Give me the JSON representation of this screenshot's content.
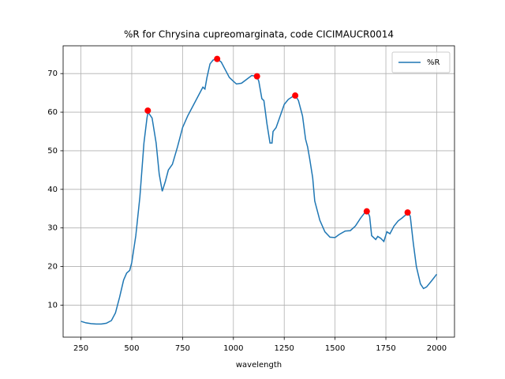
{
  "chart_data": {
    "type": "line",
    "title": "%R for Chrysina cupreomarginata, code CICIMAUCR0014",
    "xlabel": "wavelength",
    "x": [
      250,
      275,
      300,
      325,
      350,
      375,
      400,
      420,
      440,
      460,
      475,
      490,
      500,
      520,
      540,
      560,
      575,
      580,
      600,
      620,
      635,
      650,
      665,
      680,
      700,
      725,
      750,
      775,
      800,
      825,
      850,
      860,
      870,
      885,
      900,
      920,
      940,
      960,
      980,
      1000,
      1015,
      1040,
      1060,
      1090,
      1115,
      1125,
      1140,
      1150,
      1165,
      1180,
      1190,
      1195,
      1210,
      1230,
      1250,
      1270,
      1290,
      1305,
      1320,
      1340,
      1355,
      1365,
      1375,
      1390,
      1400,
      1425,
      1450,
      1475,
      1500,
      1520,
      1550,
      1575,
      1600,
      1625,
      1650,
      1660,
      1670,
      1680,
      1700,
      1710,
      1725,
      1740,
      1755,
      1770,
      1790,
      1810,
      1830,
      1850,
      1860,
      1870,
      1885,
      1900,
      1920,
      1935,
      1950,
      1975,
      2000
    ],
    "series": [
      {
        "name": "%R",
        "color": "#1f77b4",
        "values": [
          5.8,
          5.4,
          5.2,
          5.1,
          5.1,
          5.3,
          6.0,
          8,
          12,
          16.5,
          18.3,
          19,
          21,
          28,
          38,
          52,
          58.5,
          60,
          58.5,
          52,
          44,
          39.5,
          42,
          45,
          46.5,
          51,
          56,
          59,
          61.5,
          64,
          66.5,
          66,
          69,
          72.5,
          73.5,
          73.8,
          73,
          71,
          69,
          68,
          67.3,
          67.5,
          68.3,
          69.5,
          69.3,
          68,
          63.5,
          63,
          57,
          52,
          52,
          55,
          56,
          59,
          62,
          63.3,
          64,
          64.3,
          63,
          59,
          53,
          51,
          48,
          43,
          37,
          32,
          29,
          27.6,
          27.5,
          28.3,
          29.2,
          29.3,
          30.5,
          32.5,
          34.2,
          34.3,
          33,
          28,
          27,
          27.8,
          27.3,
          26.5,
          29,
          28.5,
          30.5,
          31.8,
          32.6,
          33.5,
          34,
          33,
          26,
          20,
          15.5,
          14.3,
          14.7,
          16.3,
          18
        ]
      }
    ],
    "peaks": {
      "color": "#ff0000",
      "x": [
        579,
        920,
        1116,
        1304,
        1656,
        1857
      ],
      "values": [
        60.4,
        73.8,
        69.3,
        64.3,
        34.3,
        34.0
      ]
    },
    "xlim": [
      162.5,
      2087.5
    ],
    "ylim": [
      1.7,
      77.2
    ],
    "xticks": [
      250,
      500,
      750,
      1000,
      1250,
      1500,
      1750,
      2000
    ],
    "yticks": [
      10,
      20,
      30,
      40,
      50,
      60,
      70
    ],
    "grid": true,
    "legend": "upper right"
  }
}
